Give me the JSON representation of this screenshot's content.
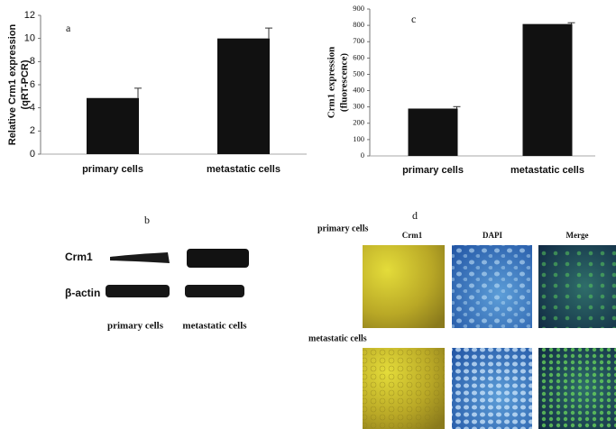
{
  "chart_data": [
    {
      "type": "bar",
      "annotation": "a",
      "ylabel": [
        "Relative Crm1 expression",
        "(qRT-PCR)"
      ],
      "categories": [
        "primary cells",
        "metastatic cells"
      ],
      "values": [
        4.85,
        10.0
      ],
      "errors": [
        0.85,
        0.9
      ],
      "color": "#111111",
      "ylim": [
        0,
        12
      ],
      "yticks": [
        0,
        2,
        4,
        6,
        8,
        10,
        12
      ]
    },
    {
      "type": "bar",
      "annotation": "c",
      "ylabel": [
        "Crm1 expression",
        "(fluorescence)"
      ],
      "categories": [
        "primary cells",
        "metastatic cells"
      ],
      "values": [
        290,
        808
      ],
      "errors": [
        12,
        8
      ],
      "color": "#111111",
      "ylim": [
        0,
        900
      ],
      "yticks": [
        0,
        100,
        200,
        300,
        400,
        500,
        600,
        700,
        800,
        900
      ]
    }
  ],
  "blot": {
    "label": "b",
    "rows": [
      "Crm1",
      "β-actin"
    ],
    "columns": [
      "primary cells",
      "metastatic cells"
    ]
  },
  "imaging": {
    "label": "d",
    "rows": [
      "primary cells",
      "metastatic cells"
    ],
    "columns": [
      "Crm1",
      "DAPI",
      "Merge"
    ]
  }
}
